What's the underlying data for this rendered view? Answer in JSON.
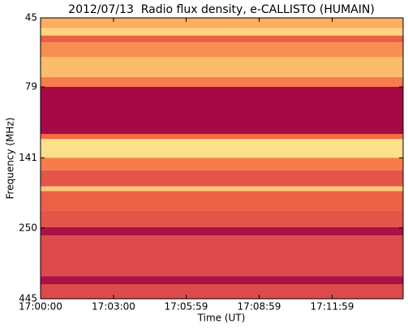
{
  "chart_data": {
    "type": "spectrogram",
    "title": "2012/07/13  Radio flux density, e-CALLISTO (HUMAIN)",
    "xlabel": "Time (UT)",
    "ylabel": "Frequency (MHz)",
    "xlim": [
      0,
      894
    ],
    "xticks": [
      {
        "value": 0,
        "label": "17:00:00"
      },
      {
        "value": 180,
        "label": "17:03:00"
      },
      {
        "value": 359,
        "label": "17:05:59"
      },
      {
        "value": 539,
        "label": "17:08:59"
      },
      {
        "value": 719,
        "label": "17:11:59"
      }
    ],
    "ylim": [
      45,
      445
    ],
    "ylog": true,
    "yinverted": true,
    "yticks": [
      45,
      79,
      141,
      250,
      445
    ],
    "y_edges": [
      45,
      49,
      52,
      55,
      62,
      73,
      79,
      116,
      121,
      141,
      156,
      178,
      185,
      217,
      248,
      266,
      370,
      395,
      445
    ],
    "levels": [
      0.6,
      0.75,
      0.35,
      0.5,
      0.65,
      0.45,
      0.03,
      0.4,
      0.8,
      0.45,
      0.3,
      0.7,
      0.35,
      0.3,
      0.05,
      0.25,
      0.05,
      0.25
    ],
    "colormap": [
      "#9e0142",
      "#d53e4f",
      "#f46d43",
      "#fdae61",
      "#fee08b",
      "#ffffbf"
    ]
  }
}
